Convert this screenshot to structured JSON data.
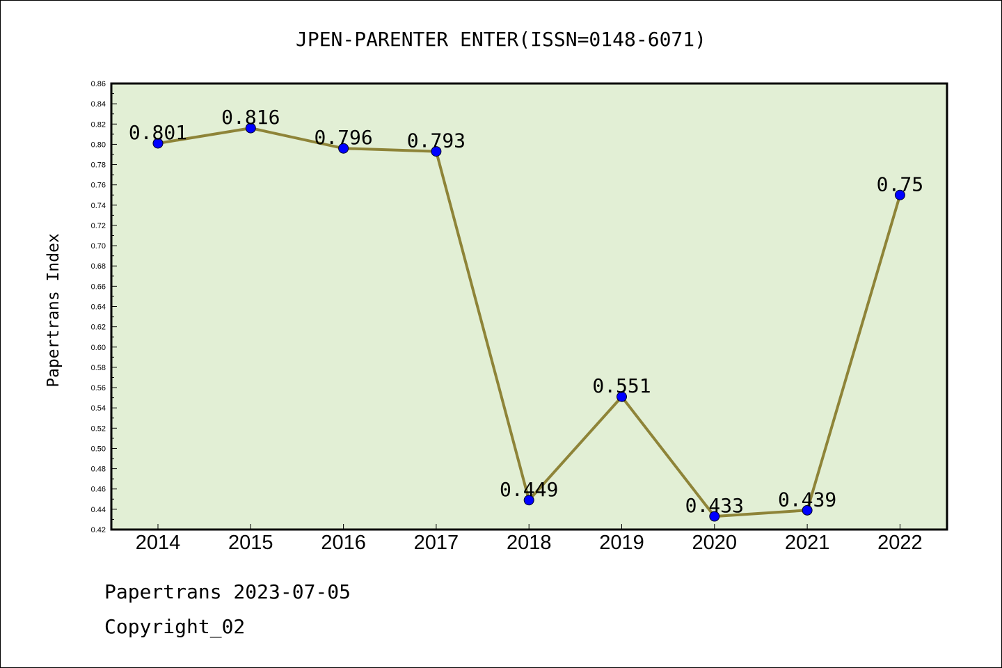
{
  "chart_data": {
    "type": "line",
    "title": "JPEN-PARENTER ENTER(ISSN=0148-6071)",
    "xlabel": "",
    "ylabel": "Papertrans Index",
    "categories": [
      "2014",
      "2015",
      "2016",
      "2017",
      "2018",
      "2019",
      "2020",
      "2021",
      "2022"
    ],
    "series": [
      {
        "values": [
          0.801,
          0.816,
          0.796,
          0.793,
          0.449,
          0.551,
          0.433,
          0.439,
          0.75
        ],
        "labels": [
          "0.801",
          "0.816",
          "0.796",
          "0.793",
          "0.449",
          "0.551",
          "0.433",
          "0.439",
          "0.75"
        ]
      }
    ],
    "ylim": [
      0.42,
      0.86
    ],
    "yticks": [
      "0.42",
      "0.44",
      "0.46",
      "0.48",
      "0.50",
      "0.52",
      "0.54",
      "0.56",
      "0.58",
      "0.60",
      "0.62",
      "0.64",
      "0.66",
      "0.68",
      "0.70",
      "0.72",
      "0.74",
      "0.76",
      "0.78",
      "0.80",
      "0.82",
      "0.84",
      "0.86"
    ],
    "grid": false,
    "colors": {
      "plot_background": "#e2efd5",
      "line": "#8e8438",
      "marker": "#0000ff"
    }
  },
  "footer": {
    "line1": "Papertrans 2023-07-05",
    "line2": "Copyright_02"
  }
}
